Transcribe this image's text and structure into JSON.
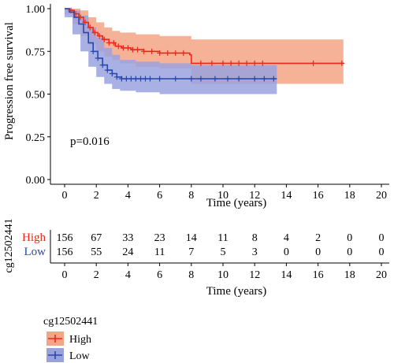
{
  "chart_data": {
    "type": "line",
    "subtype": "kaplan-meier",
    "ylabel": "Progression free survival",
    "xlabel": "Time (years)",
    "xlim": [
      0,
      20
    ],
    "ylim": [
      0,
      1
    ],
    "xticks": [
      "0",
      "2",
      "4",
      "6",
      "8",
      "10",
      "12",
      "14",
      "16",
      "18",
      "20"
    ],
    "yticks": [
      "0.00",
      "0.25",
      "0.50",
      "0.75",
      "1.00"
    ],
    "annotation": "p=0.016",
    "colors": {
      "High": "#e8291c",
      "Low": "#2947a7",
      "High_band": "#f4a585",
      "Low_band": "#9aa2de"
    },
    "series": [
      {
        "name": "High",
        "curve": [
          [
            0,
            1.0
          ],
          [
            0.3,
            0.99
          ],
          [
            0.6,
            0.97
          ],
          [
            0.9,
            0.95
          ],
          [
            1.2,
            0.92
          ],
          [
            1.5,
            0.89
          ],
          [
            1.8,
            0.86
          ],
          [
            2.1,
            0.84
          ],
          [
            2.4,
            0.82
          ],
          [
            2.8,
            0.8
          ],
          [
            3.2,
            0.78
          ],
          [
            3.6,
            0.77
          ],
          [
            4.2,
            0.76
          ],
          [
            5.0,
            0.75
          ],
          [
            6.0,
            0.74
          ],
          [
            7.9,
            0.73
          ],
          [
            8.0,
            0.68
          ],
          [
            17.6,
            0.68
          ]
        ],
        "ci_upper": [
          [
            0,
            1.0
          ],
          [
            0.5,
            1.0
          ],
          [
            1.0,
            0.99
          ],
          [
            1.5,
            0.95
          ],
          [
            2.0,
            0.92
          ],
          [
            2.5,
            0.89
          ],
          [
            3.0,
            0.87
          ],
          [
            3.5,
            0.86
          ],
          [
            4.5,
            0.85
          ],
          [
            6.0,
            0.84
          ],
          [
            8.0,
            0.84
          ],
          [
            8.0,
            0.82
          ],
          [
            17.6,
            0.82
          ]
        ],
        "ci_lower": [
          [
            0,
            1.0
          ],
          [
            0.5,
            0.97
          ],
          [
            1.0,
            0.91
          ],
          [
            1.5,
            0.84
          ],
          [
            2.0,
            0.79
          ],
          [
            2.5,
            0.75
          ],
          [
            3.0,
            0.72
          ],
          [
            3.5,
            0.7
          ],
          [
            4.5,
            0.68
          ],
          [
            6.0,
            0.66
          ],
          [
            8.0,
            0.65
          ],
          [
            8.0,
            0.56
          ],
          [
            17.6,
            0.56
          ]
        ],
        "censors": [
          0.4,
          0.7,
          1.0,
          1.3,
          1.6,
          1.9,
          2.2,
          2.5,
          2.8,
          3.1,
          3.4,
          3.7,
          4.0,
          4.3,
          4.6,
          5.0,
          5.5,
          6.0,
          6.5,
          7.0,
          7.5,
          8.6,
          9.3,
          10.0,
          10.5,
          11.0,
          11.5,
          12.0,
          12.5,
          15.7,
          17.5
        ]
      },
      {
        "name": "Low",
        "curve": [
          [
            0,
            1.0
          ],
          [
            0.3,
            0.98
          ],
          [
            0.6,
            0.95
          ],
          [
            0.9,
            0.91
          ],
          [
            1.2,
            0.86
          ],
          [
            1.5,
            0.8
          ],
          [
            1.8,
            0.75
          ],
          [
            2.1,
            0.71
          ],
          [
            2.4,
            0.67
          ],
          [
            2.7,
            0.64
          ],
          [
            3.0,
            0.62
          ],
          [
            3.3,
            0.6
          ],
          [
            3.6,
            0.59
          ],
          [
            13.4,
            0.59
          ]
        ],
        "ci_upper": [
          [
            0,
            1.0
          ],
          [
            0.5,
            0.99
          ],
          [
            1.0,
            0.96
          ],
          [
            1.5,
            0.89
          ],
          [
            2.0,
            0.83
          ],
          [
            2.5,
            0.77
          ],
          [
            3.0,
            0.73
          ],
          [
            3.5,
            0.7
          ],
          [
            4.5,
            0.69
          ],
          [
            6.0,
            0.68
          ],
          [
            8.0,
            0.67
          ],
          [
            13.4,
            0.67
          ]
        ],
        "ci_lower": [
          [
            0,
            1.0
          ],
          [
            0.5,
            0.95
          ],
          [
            1.0,
            0.85
          ],
          [
            1.5,
            0.75
          ],
          [
            2.0,
            0.66
          ],
          [
            2.5,
            0.6
          ],
          [
            3.0,
            0.56
          ],
          [
            3.5,
            0.53
          ],
          [
            4.5,
            0.52
          ],
          [
            6.0,
            0.51
          ],
          [
            8.0,
            0.5
          ],
          [
            13.4,
            0.5
          ]
        ],
        "censors": [
          1.8,
          2.1,
          2.4,
          2.7,
          3.0,
          3.3,
          3.6,
          3.9,
          4.2,
          4.5,
          4.8,
          5.1,
          5.4,
          6.0,
          7.0,
          8.0,
          8.6,
          9.5,
          10.3,
          11.0,
          12.0,
          12.6,
          13.2
        ]
      }
    ],
    "risk_table": {
      "title": "cg12502441",
      "times": [
        "0",
        "2",
        "4",
        "6",
        "8",
        "10",
        "12",
        "14",
        "16",
        "18",
        "20"
      ],
      "xlabel": "Time (years)",
      "rows": [
        {
          "label": "High",
          "values": [
            "156",
            "67",
            "33",
            "23",
            "14",
            "11",
            "8",
            "4",
            "2",
            "0",
            "0"
          ]
        },
        {
          "label": "Low",
          "values": [
            "156",
            "55",
            "24",
            "11",
            "7",
            "5",
            "3",
            "0",
            "0",
            "0",
            "0"
          ]
        }
      ]
    },
    "legend": {
      "title": "cg12502441",
      "position": "bottom-left",
      "items": [
        "High",
        "Low"
      ]
    }
  }
}
